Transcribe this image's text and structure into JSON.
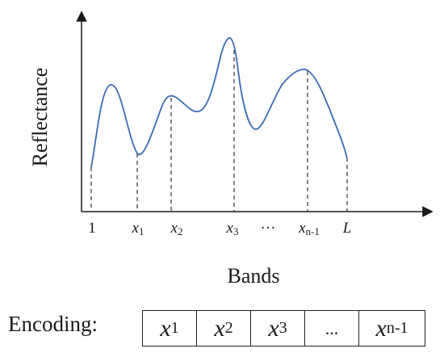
{
  "axes": {
    "y_label": "Reflectance",
    "x_label": "Bands"
  },
  "ticks": [
    {
      "id": "1",
      "italic": "",
      "sub": "",
      "plain": "1"
    },
    {
      "id": "x1",
      "italic": "x",
      "sub": "1",
      "plain": ""
    },
    {
      "id": "x2",
      "italic": "x",
      "sub": "2",
      "plain": ""
    },
    {
      "id": "x3",
      "italic": "x",
      "sub": "3",
      "plain": ""
    },
    {
      "id": "dots",
      "italic": "",
      "sub": "",
      "plain": "···"
    },
    {
      "id": "xn1",
      "italic": "x",
      "sub": "n-1",
      "plain": ""
    },
    {
      "id": "L",
      "italic": "L",
      "sub": "",
      "plain": ""
    }
  ],
  "encoding": {
    "label": "Encoding:",
    "cells": [
      {
        "italic": "x",
        "sub": "1",
        "plain": ""
      },
      {
        "italic": "x",
        "sub": "2",
        "plain": ""
      },
      {
        "italic": "x",
        "sub": "3",
        "plain": ""
      },
      {
        "italic": "",
        "sub": "",
        "plain": "..."
      },
      {
        "italic": "x",
        "sub": "n-1",
        "plain": ""
      }
    ]
  },
  "colors": {
    "curve": "#3b6cb4",
    "axis": "#1a1a1a",
    "dash": "#333333"
  }
}
